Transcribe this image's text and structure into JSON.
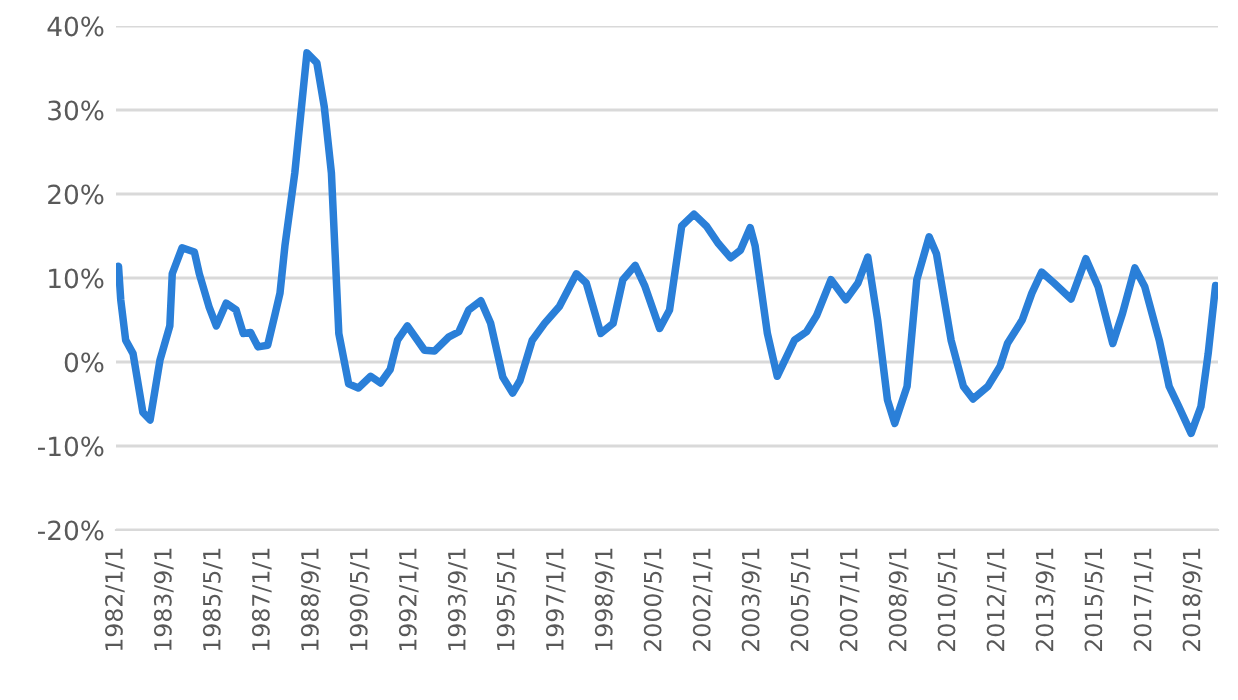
{
  "chart_data": {
    "type": "line",
    "x": [
      "1982-01",
      "1982-02",
      "1982-03",
      "1982-05",
      "1982-08",
      "1982-12",
      "1983-03",
      "1983-07",
      "1983-11",
      "1983-12",
      "1984-04",
      "1984-09",
      "1984-11",
      "1985-03",
      "1985-06",
      "1985-10",
      "1986-02",
      "1986-05",
      "1986-08",
      "1986-11",
      "1987-03",
      "1987-06",
      "1987-08",
      "1987-10",
      "1988-02",
      "1988-07",
      "1988-11",
      "1989-02",
      "1989-05",
      "1989-08",
      "1989-12",
      "1990-04",
      "1990-09",
      "1991-01",
      "1991-05",
      "1991-08",
      "1991-12",
      "1992-07",
      "1992-11",
      "1993-05",
      "1993-09",
      "1994-01",
      "1994-06",
      "1994-10",
      "1995-03",
      "1995-07",
      "1995-10",
      "1996-03",
      "1996-08",
      "1997-02",
      "1997-09",
      "1998-01",
      "1998-07",
      "1998-12",
      "1999-04",
      "1999-09",
      "2000-01",
      "2000-07",
      "2000-11",
      "2001-04",
      "2001-09",
      "2002-02",
      "2002-07",
      "2002-12",
      "2003-04",
      "2003-08",
      "2003-10",
      "2004-03",
      "2004-07",
      "2005-02",
      "2005-07",
      "2005-11",
      "2006-05",
      "2006-11",
      "2007-04",
      "2007-08",
      "2007-12",
      "2008-04",
      "2008-07",
      "2008-12",
      "2009-04",
      "2009-09",
      "2009-12",
      "2010-06",
      "2010-11",
      "2011-03",
      "2011-09",
      "2012-02",
      "2012-05",
      "2012-11",
      "2013-03",
      "2013-07",
      "2013-12",
      "2014-07",
      "2015-01",
      "2015-06",
      "2015-12",
      "2016-04",
      "2016-09",
      "2017-01",
      "2017-07",
      "2017-11",
      "2018-03",
      "2018-08",
      "2018-12",
      "2019-03",
      "2019-06"
    ],
    "series": [
      {
        "color": "#2a7fd8",
        "values": [
          10.5,
          11.4,
          7.4,
          2.6,
          1,
          -6,
          -6.9,
          0.2,
          4.3,
          10.5,
          13.6,
          13.1,
          10.5,
          6.6,
          4.3,
          7,
          6.2,
          3.4,
          3.5,
          1.8,
          2,
          5.7,
          8.2,
          13.8,
          22.5,
          36.8,
          35.6,
          30.4,
          22.5,
          3.4,
          -2.6,
          -3.1,
          -1.7,
          -2.5,
          -0.9,
          2.6,
          4.3,
          1.4,
          1.3,
          3,
          3.6,
          6.2,
          7.3,
          4.6,
          -1.8,
          -3.7,
          -2.2,
          2.6,
          4.6,
          6.6,
          10.5,
          9.4,
          3.4,
          4.6,
          9.8,
          11.5,
          9,
          4,
          6.2,
          16.2,
          17.6,
          16.2,
          14.1,
          12.4,
          13.3,
          16,
          13.8,
          3.4,
          -1.7,
          2.6,
          3.6,
          5.5,
          9.8,
          7.4,
          9.4,
          12.5,
          5,
          -4.5,
          -7.3,
          -2.9,
          9.8,
          14.9,
          12.9,
          2.6,
          -2.9,
          -4.4,
          -2.9,
          -0.5,
          2.2,
          5,
          8.2,
          10.7,
          9.4,
          7.5,
          12.3,
          9,
          2.2,
          5.8,
          11.2,
          9,
          2.6,
          -2.9,
          -5.3,
          -8.5,
          -5.3,
          1,
          9.1
        ]
      }
    ],
    "xlim": [
      "1982-01",
      "2019-07"
    ],
    "xticks": [
      {
        "value": "1982-01-01",
        "label": "1982/1/1"
      },
      {
        "value": "1983-09-01",
        "label": "1983/9/1"
      },
      {
        "value": "1985-05-01",
        "label": "1985/5/1"
      },
      {
        "value": "1987-01-01",
        "label": "1987/1/1"
      },
      {
        "value": "1988-09-01",
        "label": "1988/9/1"
      },
      {
        "value": "1990-05-01",
        "label": "1990/5/1"
      },
      {
        "value": "1992-01-01",
        "label": "1992/1/1"
      },
      {
        "value": "1993-09-01",
        "label": "1993/9/1"
      },
      {
        "value": "1995-05-01",
        "label": "1995/5/1"
      },
      {
        "value": "1997-01-01",
        "label": "1997/1/1"
      },
      {
        "value": "1998-09-01",
        "label": "1998/9/1"
      },
      {
        "value": "2000-05-01",
        "label": "2000/5/1"
      },
      {
        "value": "2002-01-01",
        "label": "2002/1/1"
      },
      {
        "value": "2003-09-01",
        "label": "2003/9/1"
      },
      {
        "value": "2005-05-01",
        "label": "2005/5/1"
      },
      {
        "value": "2007-01-01",
        "label": "2007/1/1"
      },
      {
        "value": "2008-09-01",
        "label": "2008/9/1"
      },
      {
        "value": "2010-05-01",
        "label": "2010/5/1"
      },
      {
        "value": "2012-01-01",
        "label": "2012/1/1"
      },
      {
        "value": "2013-09-01",
        "label": "2013/9/1"
      },
      {
        "value": "2015-05-01",
        "label": "2015/5/1"
      },
      {
        "value": "2017-01-01",
        "label": "2017/1/1"
      },
      {
        "value": "2018-09-01",
        "label": "2018/9/1"
      }
    ],
    "ylim": [
      -20,
      40
    ],
    "yticks": [
      {
        "value": -20,
        "label": "-20%"
      },
      {
        "value": -10,
        "label": "-10%"
      },
      {
        "value": 0,
        "label": "0%"
      },
      {
        "value": 10,
        "label": "10%"
      },
      {
        "value": 20,
        "label": "20%"
      },
      {
        "value": 30,
        "label": "30%"
      },
      {
        "value": 40,
        "label": "40%"
      }
    ],
    "grid": "y",
    "marker": "none",
    "line_style": "solid"
  }
}
